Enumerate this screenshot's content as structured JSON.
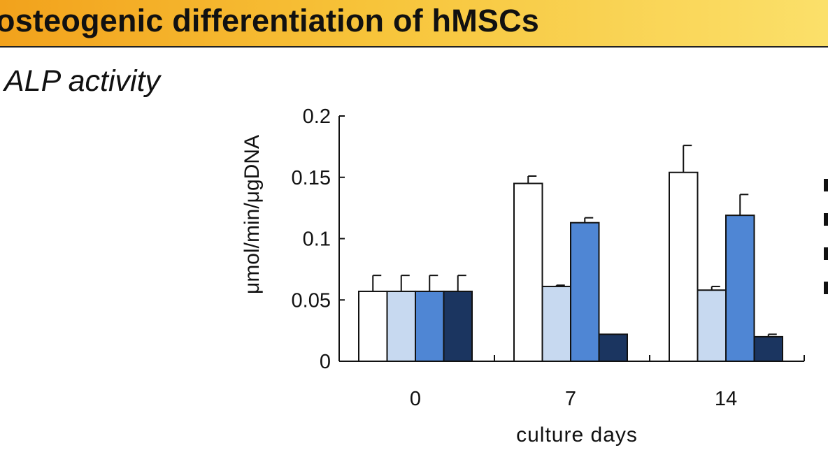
{
  "banner": {
    "title": "osteogenic differentiation of hMSCs"
  },
  "section": {
    "heading": "ALP activity"
  },
  "colors": {
    "banner_start": "#f2a21c",
    "banner_end": "#fbe06a"
  },
  "chart_data": {
    "type": "bar",
    "title": "",
    "xlabel": "culture days",
    "ylabel": "μmol/min/μgDNA",
    "ylim": [
      0,
      0.2
    ],
    "yticks": [
      0,
      0.05,
      0.1,
      0.15,
      0.2
    ],
    "ytick_labels": [
      "0",
      "0.05",
      "0.1",
      "0.15",
      "0.2"
    ],
    "categories": [
      "0",
      "7",
      "14"
    ],
    "grid": false,
    "legend": "right (cropped)",
    "series": [
      {
        "color": "#ffffff",
        "values": [
          0.057,
          0.145,
          0.154
        ],
        "errors": [
          0.013,
          0.006,
          0.022
        ]
      },
      {
        "color": "#c7d9f0",
        "values": [
          0.057,
          0.061,
          0.058
        ],
        "errors": [
          0.013,
          0.001,
          0.003
        ]
      },
      {
        "color": "#4f86d4",
        "values": [
          0.057,
          0.113,
          0.119
        ],
        "errors": [
          0.013,
          0.004,
          0.017
        ]
      },
      {
        "color": "#1b3560",
        "values": [
          0.057,
          0.022,
          0.02
        ],
        "errors": [
          0.013,
          0.0,
          0.002
        ]
      }
    ]
  }
}
